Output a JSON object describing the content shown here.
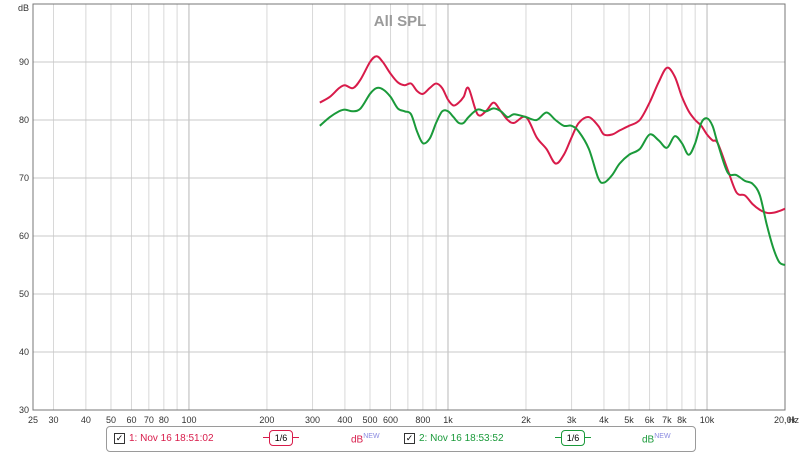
{
  "chart_data": {
    "type": "line",
    "title": "All SPL",
    "x_scale": "log",
    "xlim": [
      25,
      20000
    ],
    "ylim": [
      30,
      100
    ],
    "x_unit": "Hz",
    "grid": true,
    "x_tick_labels": [
      {
        "v": 25,
        "t": "25"
      },
      {
        "v": 30,
        "t": "30"
      },
      {
        "v": 40,
        "t": "40"
      },
      {
        "v": 50,
        "t": "50"
      },
      {
        "v": 60,
        "t": "60"
      },
      {
        "v": 70,
        "t": "70"
      },
      {
        "v": 80,
        "t": "80"
      },
      {
        "v": 100,
        "t": "100"
      },
      {
        "v": 200,
        "t": "200"
      },
      {
        "v": 300,
        "t": "300"
      },
      {
        "v": 400,
        "t": "400"
      },
      {
        "v": 500,
        "t": "500"
      },
      {
        "v": 600,
        "t": "600"
      },
      {
        "v": 800,
        "t": "800"
      },
      {
        "v": 1000,
        "t": "1k"
      },
      {
        "v": 2000,
        "t": "2k"
      },
      {
        "v": 3000,
        "t": "3k"
      },
      {
        "v": 4000,
        "t": "4k"
      },
      {
        "v": 5000,
        "t": "5k"
      },
      {
        "v": 6000,
        "t": "6k"
      },
      {
        "v": 7000,
        "t": "7k"
      },
      {
        "v": 8000,
        "t": "8k"
      },
      {
        "v": 10000,
        "t": "10k"
      },
      {
        "v": 20000,
        "t": "20,0k"
      }
    ],
    "y_tick_labels": [
      30,
      40,
      50,
      60,
      70,
      80,
      90
    ],
    "y_top_label": "dB",
    "series": [
      {
        "name": "1: Nov 16 18:51:02",
        "color": "#d81b4a",
        "x": [
          320,
          350,
          380,
          400,
          430,
          460,
          500,
          530,
          560,
          600,
          640,
          680,
          720,
          760,
          800,
          850,
          900,
          950,
          1000,
          1050,
          1100,
          1150,
          1200,
          1300,
          1400,
          1500,
          1600,
          1700,
          1800,
          2000,
          2200,
          2400,
          2600,
          2800,
          3000,
          3200,
          3500,
          3800,
          4000,
          4300,
          4600,
          5000,
          5500,
          6000,
          6500,
          7000,
          7500,
          8000,
          8500,
          9000,
          9500,
          10000,
          10500,
          11000,
          12000,
          13000,
          14000,
          15000,
          16000,
          17000,
          18000,
          19000,
          20000
        ],
        "y": [
          83,
          84,
          85.5,
          86,
          85.5,
          87,
          90,
          91,
          90,
          88,
          86.5,
          86,
          86.3,
          85,
          84.5,
          85.5,
          86.3,
          85.5,
          83.5,
          82.5,
          83,
          84,
          85.5,
          81,
          81.5,
          83,
          81.5,
          80,
          79.5,
          80.5,
          77,
          75,
          72.5,
          74,
          77,
          79.5,
          80.5,
          79,
          77.5,
          77.5,
          78.2,
          79,
          80,
          83,
          86.5,
          89,
          87.5,
          84,
          81.5,
          80,
          79,
          77.5,
          76.5,
          76,
          71.5,
          67.5,
          67,
          65.5,
          64.5,
          64,
          64,
          64.3,
          64.7
        ]
      },
      {
        "name": "2: Nov 16 18:53:52",
        "color": "#1a9a3a",
        "x": [
          320,
          350,
          380,
          400,
          430,
          460,
          500,
          530,
          560,
          600,
          640,
          680,
          720,
          760,
          800,
          850,
          900,
          950,
          1000,
          1050,
          1100,
          1150,
          1200,
          1300,
          1400,
          1500,
          1600,
          1700,
          1800,
          2000,
          2200,
          2400,
          2600,
          2800,
          3000,
          3200,
          3500,
          3800,
          4000,
          4300,
          4600,
          5000,
          5500,
          6000,
          6500,
          7000,
          7500,
          8000,
          8500,
          9000,
          9500,
          10000,
          10500,
          11000,
          12000,
          13000,
          14000,
          15000,
          16000,
          17000,
          18000,
          19000,
          20000
        ],
        "y": [
          79,
          80.5,
          81.5,
          81.8,
          81.5,
          82,
          84.5,
          85.5,
          85.3,
          84,
          82,
          81.5,
          81,
          78,
          76,
          76.8,
          79.5,
          81.5,
          81.5,
          80.5,
          79.5,
          79.5,
          80.5,
          81.8,
          81.5,
          82,
          81.5,
          80.5,
          81,
          80.5,
          80,
          81.3,
          80,
          79,
          79,
          78,
          75,
          70,
          69.2,
          70.5,
          72.5,
          74,
          75,
          77.5,
          76.5,
          75.2,
          77.2,
          76,
          74,
          76,
          79.5,
          80.3,
          79,
          76,
          71,
          70.5,
          69.5,
          69,
          67,
          62,
          58,
          55.5,
          55
        ]
      }
    ],
    "legend": {
      "position": "bottom",
      "smoothing_label": "1/6",
      "unit_label": "dB",
      "unit_superscript": "NEW"
    }
  }
}
